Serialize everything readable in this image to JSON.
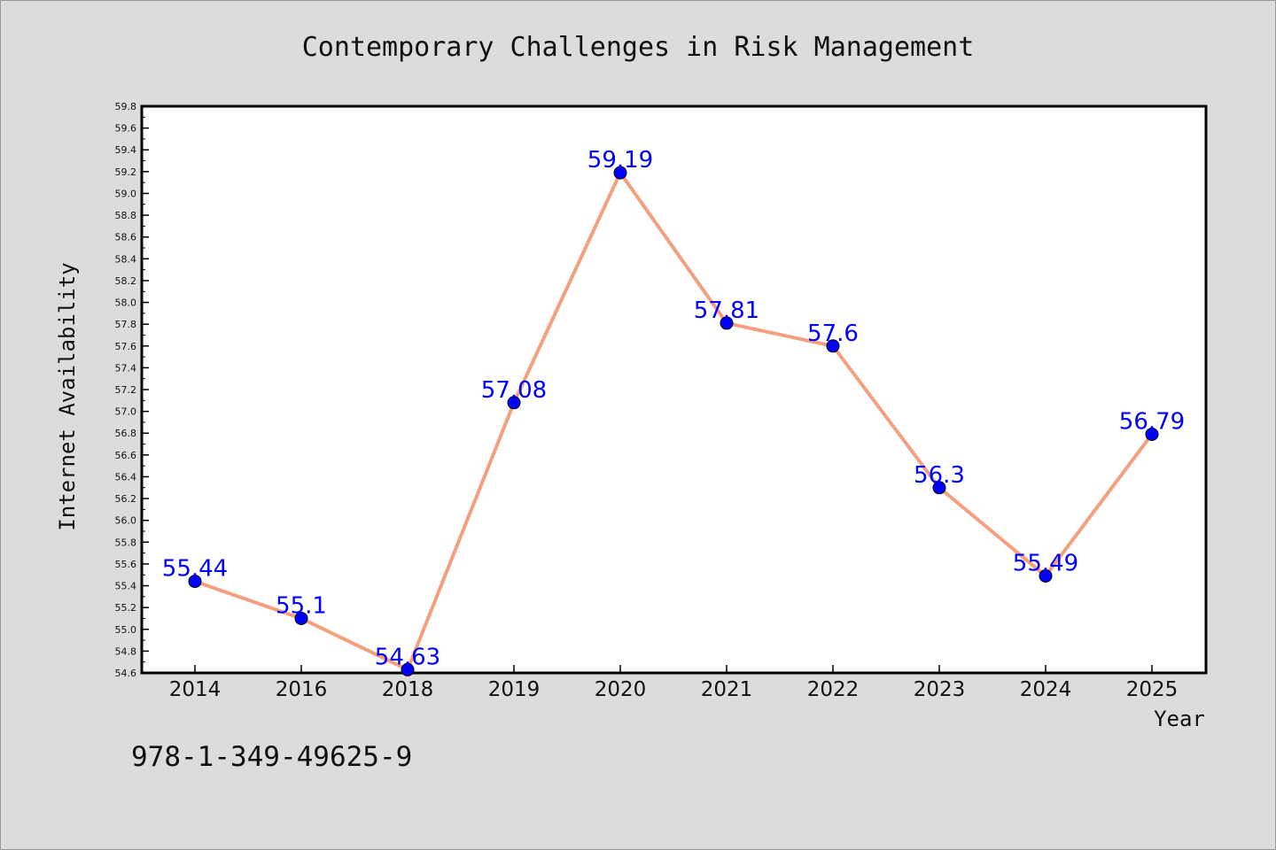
{
  "chart_data": {
    "type": "line",
    "title": "Contemporary Challenges in Risk Management",
    "xlabel": "Year",
    "ylabel": "Internet Availability",
    "categories": [
      "2014",
      "2016",
      "2018",
      "2019",
      "2020",
      "2021",
      "2022",
      "2023",
      "2024",
      "2025"
    ],
    "series": [
      {
        "values": [
          55.44,
          55.1,
          54.63,
          57.08,
          59.19,
          57.81,
          57.6,
          56.3,
          55.49,
          56.79
        ],
        "labels": [
          "55.44",
          "55.1",
          "54.63",
          "57.08",
          "59.19",
          "57.81",
          "57.6",
          "56.3",
          "55.49",
          "56.79"
        ]
      }
    ],
    "ylim": [
      54.6,
      59.8
    ],
    "ytick_step": 0.2,
    "grid": false,
    "legend": "none",
    "colors": {
      "line": "#f4a07f",
      "marker": "#0000ff",
      "label": "#0000ff",
      "background": "#dcdcdc",
      "plot_background": "#ffffff"
    }
  },
  "annotation": "978-1-349-49625-9"
}
